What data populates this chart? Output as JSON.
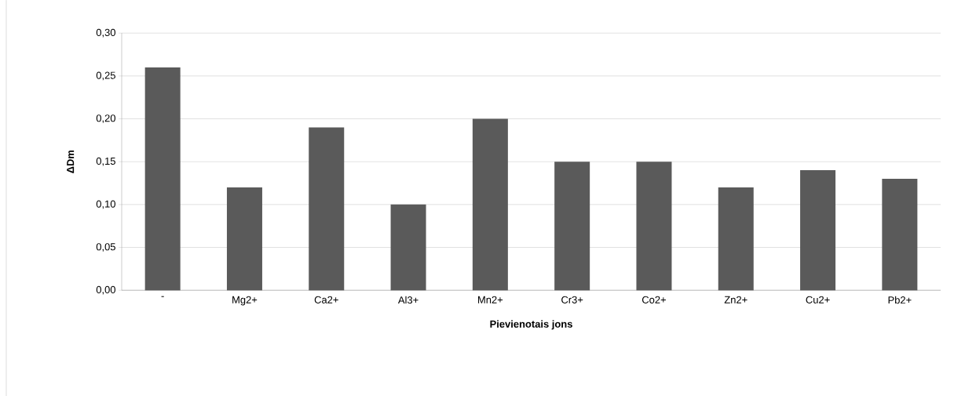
{
  "chart_data": {
    "type": "bar",
    "xlabel": "Pievienotais jons",
    "ylabel": "ΔDm",
    "categories": [
      "-",
      "Mg2+",
      "Ca2+",
      "Al3+",
      "Mn2+",
      "Cr3+",
      "Co2+",
      "Zn2+",
      "Cu2+",
      "Pb2+"
    ],
    "values": [
      0.26,
      0.12,
      0.19,
      0.1,
      0.2,
      0.15,
      0.15,
      0.12,
      0.14,
      0.13
    ],
    "color": "#5a5a5a",
    "ylim": [
      0,
      0.3
    ],
    "yticks": [
      {
        "value": 0,
        "label": "0,00"
      },
      {
        "value": 0.05,
        "label": "0,05"
      },
      {
        "value": 0.1,
        "label": "0,10"
      },
      {
        "value": 0.15,
        "label": "0,15"
      },
      {
        "value": 0.2,
        "label": "0,20"
      },
      {
        "value": 0.25,
        "label": "0,25"
      },
      {
        "value": 0.3,
        "label": "0,30"
      }
    ],
    "grid": "y"
  }
}
